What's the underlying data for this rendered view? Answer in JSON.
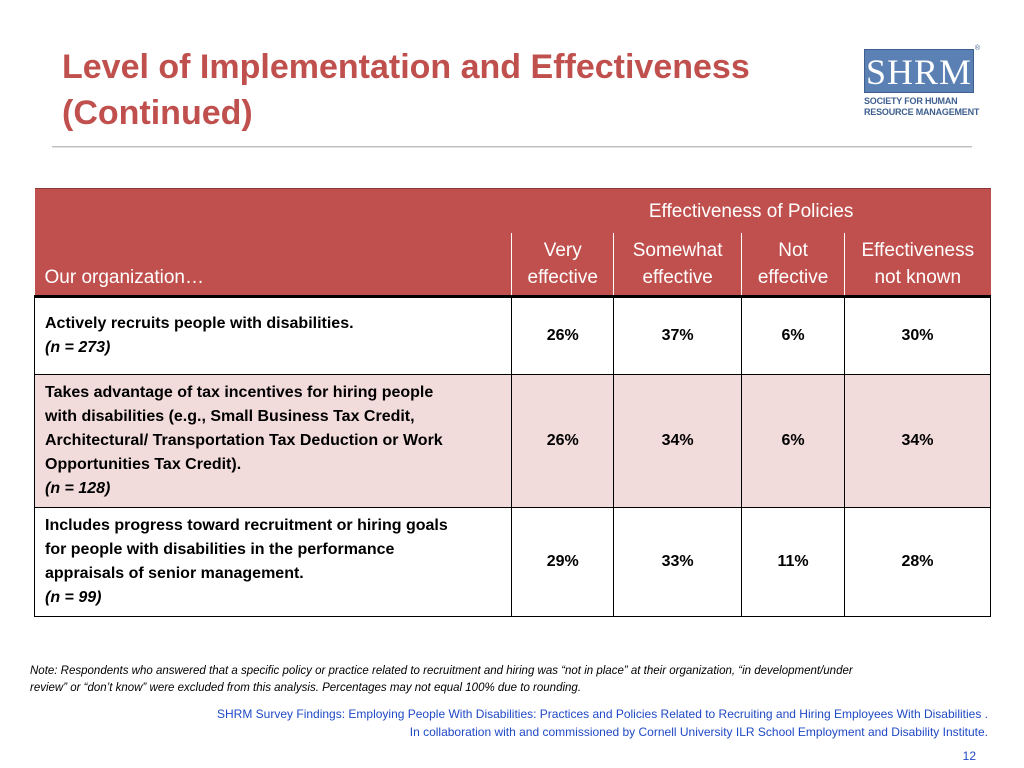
{
  "slide": {
    "title_line1": "Level of Implementation and Effectiveness",
    "title_line2": "(Continued)"
  },
  "logo": {
    "mark": "SHRM",
    "registered": "®",
    "subtitle_line1": "SOCIETY FOR HUMAN",
    "subtitle_line2": "RESOURCE MANAGEMENT"
  },
  "table": {
    "group_header": "Effectiveness of Policies",
    "row_header": "Our organization…",
    "columns": [
      {
        "line1": "Very",
        "line2": "effective"
      },
      {
        "line1": "Somewhat",
        "line2": "effective"
      },
      {
        "line1": "Not",
        "line2": "effective"
      },
      {
        "line1": "Effectiveness",
        "line2": "not known"
      }
    ],
    "rows": [
      {
        "label_lines": [
          "Actively recruits people with disabilities."
        ],
        "n": "(n = 273)",
        "values": [
          "26%",
          "37%",
          "6%",
          "30%"
        ]
      },
      {
        "label_lines": [
          "Takes advantage of tax incentives for hiring people",
          "with disabilities (e.g., Small Business Tax Credit,",
          "Architectural/ Transportation Tax Deduction or Work",
          "Opportunities Tax Credit)."
        ],
        "n": "(n = 128)",
        "values": [
          "26%",
          "34%",
          "6%",
          "34%"
        ]
      },
      {
        "label_lines": [
          "Includes progress toward recruitment or hiring goals",
          "for people with disabilities in the performance",
          "appraisals of senior management."
        ],
        "n": "(n = 99)",
        "values": [
          "29%",
          "33%",
          "11%",
          "28%"
        ]
      }
    ]
  },
  "note": {
    "line1": "Note: Respondents who answered that a specific policy or practice related to recruitment and hiring was “not in place” at their organization, “in development/under",
    "line2": "review” or “don’t know” were excluded from this analysis.  Percentages may not equal 100% due to rounding."
  },
  "source": {
    "line1": "SHRM Survey Findings: Employing People With Disabilities: Practices and Policies Related to Recruiting and Hiring Employees With Disabilities .",
    "line2": "In collaboration with and commissioned by Cornell University ILR School Employment and Disability Institute."
  },
  "page_number": "12",
  "colors": {
    "accent": "#c0504d",
    "row_shade": "#f2dcdb",
    "link_blue": "#1f49c5",
    "logo_blue": "#5b80b3"
  }
}
